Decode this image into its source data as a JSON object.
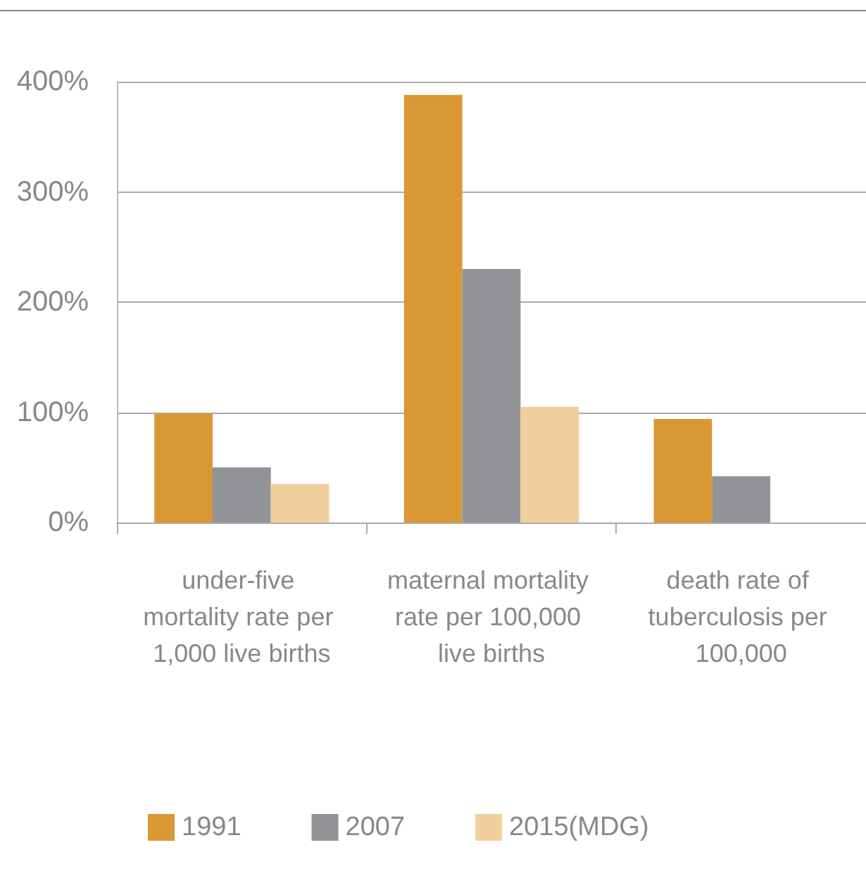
{
  "chart_data": {
    "type": "bar",
    "categories": [
      "under-five mortality rate per 1,000 live births",
      "maternal mortality rate per 100,000 live births",
      "death rate of tuberculosis per 100,000"
    ],
    "series": [
      {
        "name": "1991",
        "color": "#d99834",
        "values": [
          99,
          388,
          94
        ]
      },
      {
        "name": "2007",
        "color": "#929396",
        "values": [
          50,
          230,
          42
        ]
      },
      {
        "name": "2015(MDG)",
        "color": "#f2cf9f",
        "values": [
          35,
          105,
          null
        ]
      }
    ],
    "ylim": [
      0,
      400
    ],
    "yticks": [
      {
        "value": 0,
        "label": "0%"
      },
      {
        "value": 100,
        "label": "100%"
      },
      {
        "value": 200,
        "label": "200%"
      },
      {
        "value": 300,
        "label": "300%"
      },
      {
        "value": 400,
        "label": "400%"
      }
    ],
    "grid": "y",
    "legend": "bottom"
  }
}
